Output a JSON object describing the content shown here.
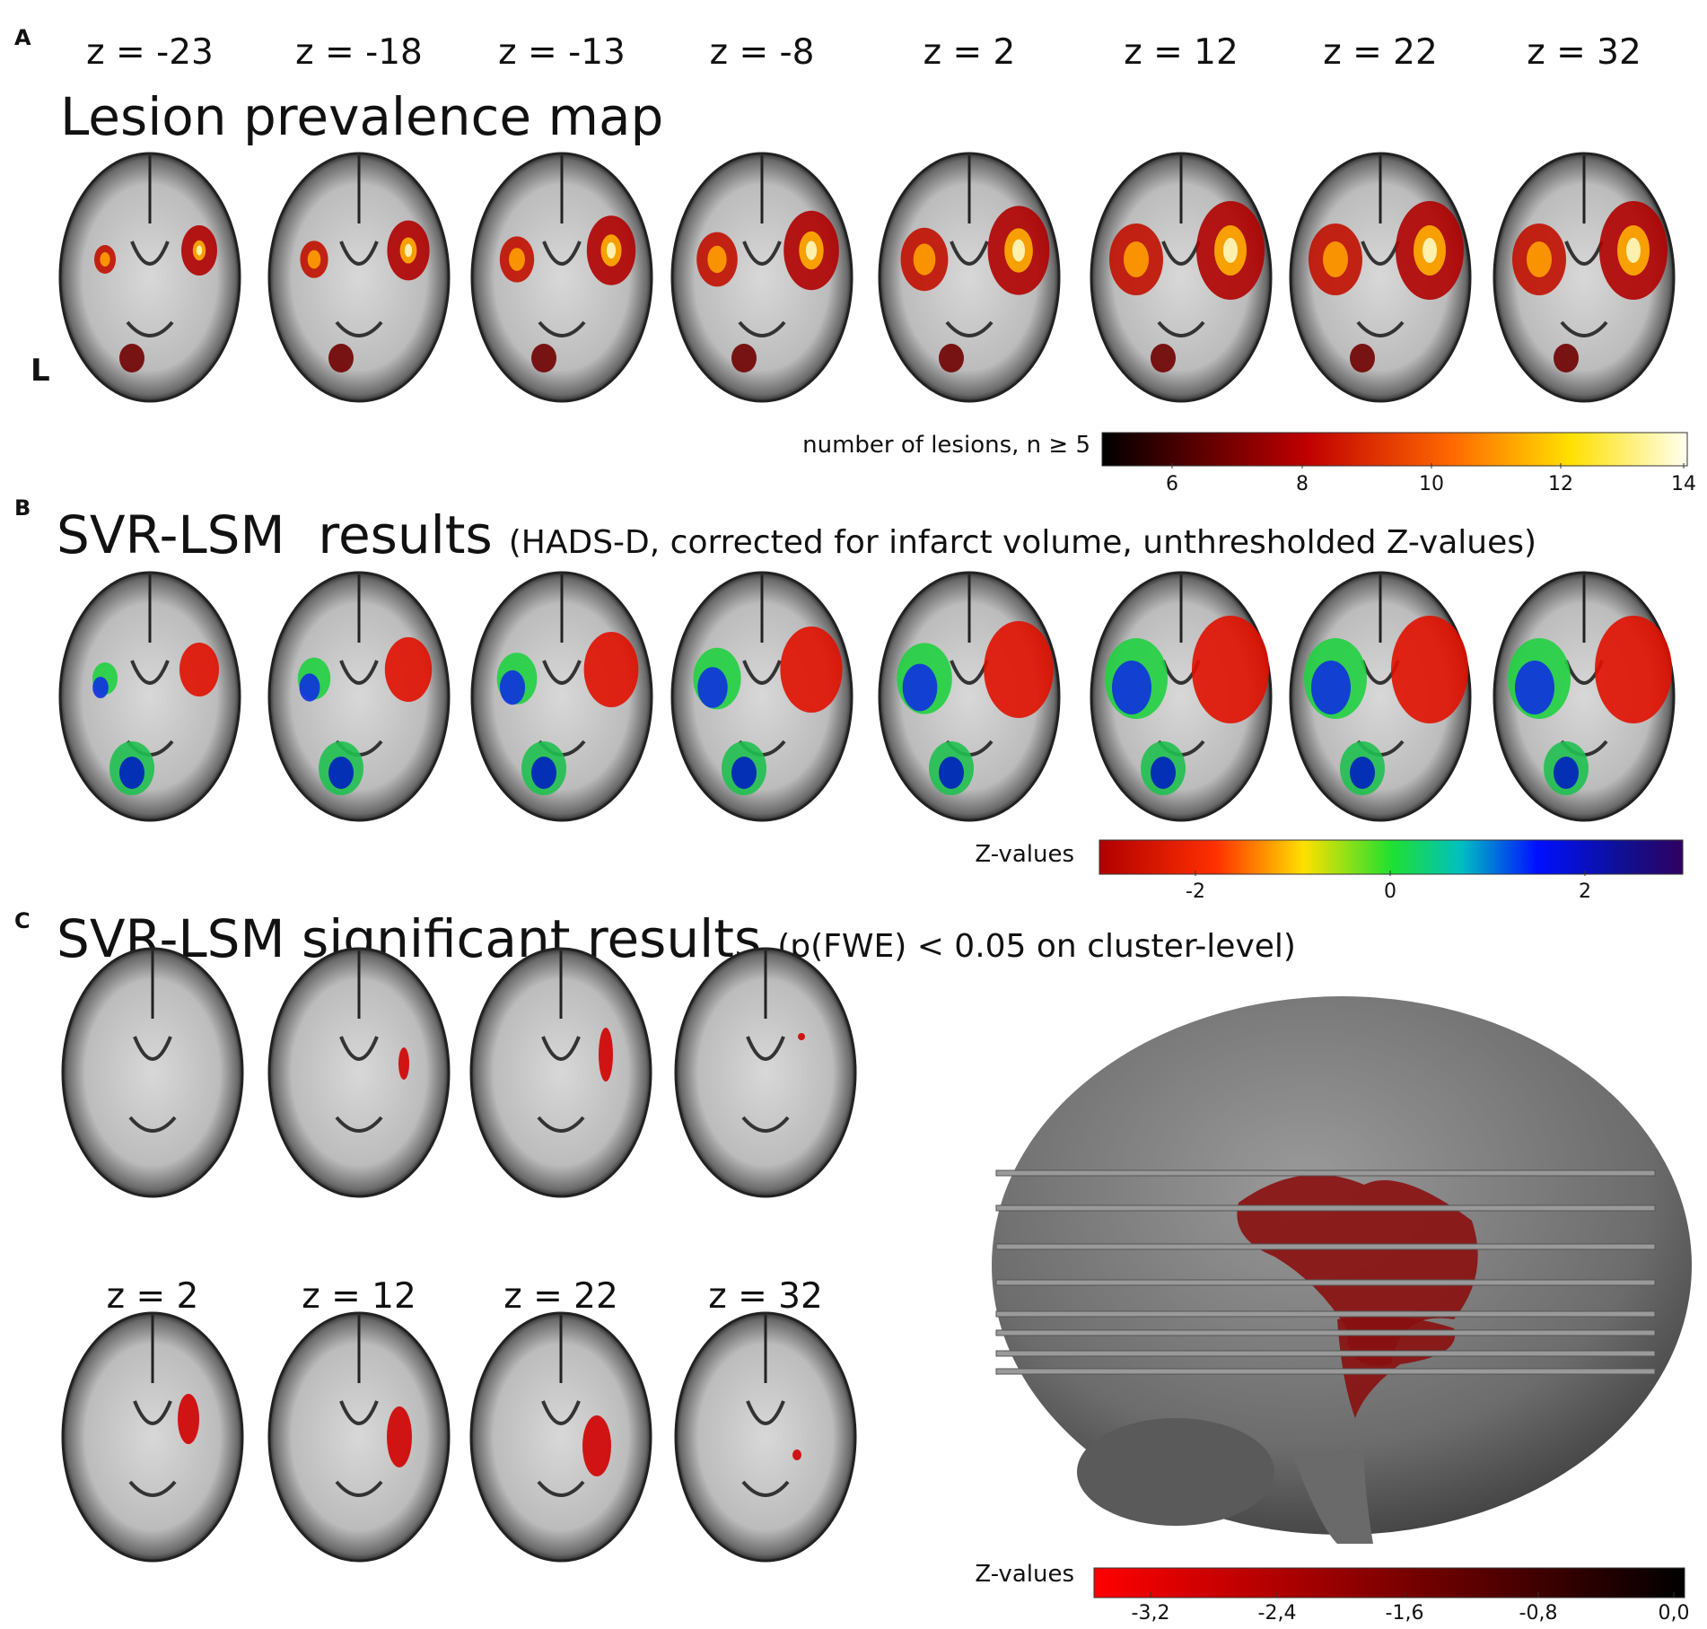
{
  "panels": [
    {
      "letter": "A",
      "title": "Lesion prevalence map",
      "slice_labels": [
        "z = -23",
        "z = -18",
        "z = -13",
        "z = -8",
        "z = 2",
        "z = 12",
        "z = 22",
        "z = 32"
      ],
      "side_label": "L",
      "colorbar": {
        "label": "number of lesions, n ≥ 5",
        "ticks": [
          "6",
          "8",
          "10",
          "12",
          "14"
        ]
      }
    },
    {
      "letter": "B",
      "title": "SVR-LSM  results",
      "subtitle": "(HADS-D, corrected for infarct volume, unthresholded Z-values)",
      "colorbar": {
        "label": "Z-values",
        "ticks": [
          "-2",
          "0",
          "2"
        ]
      }
    },
    {
      "letter": "C",
      "title": "SVR-LSM significant results",
      "subtitle": "(p(FWE) < 0.05 on cluster-level)",
      "slice_labels": [
        "z = 2",
        "z = 12",
        "z = 22",
        "z = 32"
      ],
      "colorbar": {
        "label": "Z-values",
        "ticks": [
          "-3,2",
          "-2,4",
          "-1,6",
          "-0,8",
          "0,0"
        ]
      }
    }
  ]
}
